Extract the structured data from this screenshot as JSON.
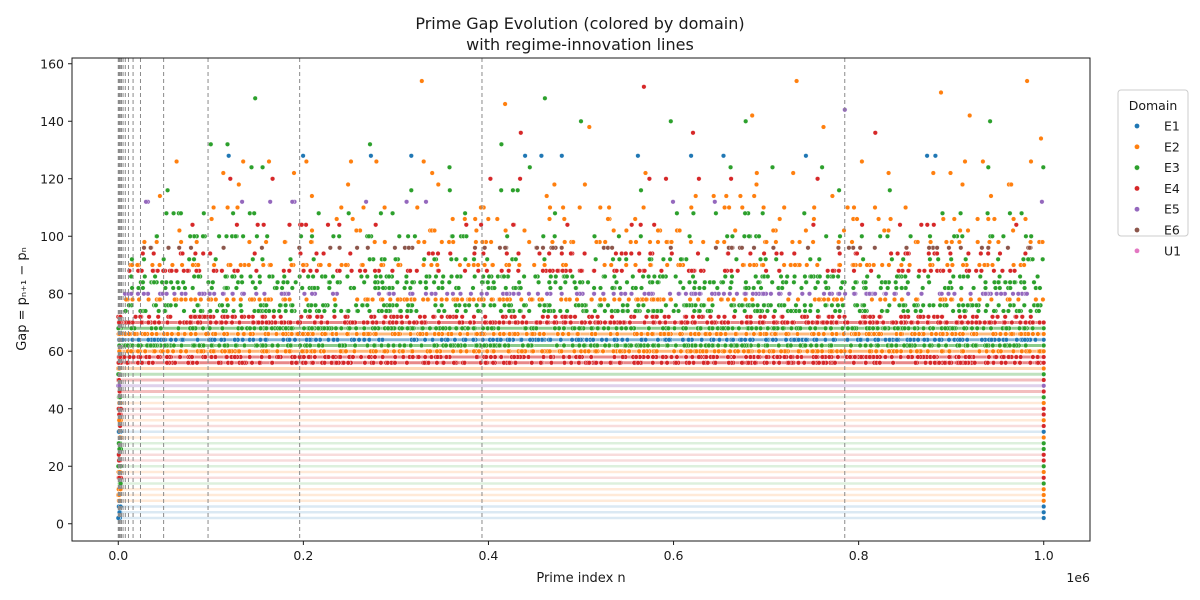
{
  "chart_data": {
    "type": "scatter",
    "title": "Prime Gap Evolution (colored by domain)",
    "subtitle": "with regime-innovation lines",
    "xlabel": "Prime index n",
    "ylabel": "Gap = pₙ₊₁ − pₙ",
    "x_offset_label": "1e6",
    "xlim": [
      -50000,
      1050000
    ],
    "ylim": [
      -6,
      162
    ],
    "x_ticks": [
      0,
      200000,
      400000,
      600000,
      800000,
      1000000
    ],
    "x_tick_labels": [
      "0.0",
      "0.2",
      "0.4",
      "0.6",
      "0.8",
      "1.0"
    ],
    "y_ticks": [
      0,
      20,
      40,
      60,
      80,
      100,
      120,
      140,
      160
    ],
    "y_tick_labels": [
      "0",
      "20",
      "40",
      "60",
      "80",
      "100",
      "120",
      "140",
      "160"
    ],
    "grid": false,
    "legend": {
      "title": "Domain",
      "placement": "outside-right-top",
      "entries": [
        "E1",
        "E2",
        "E3",
        "E4",
        "E5",
        "E6",
        "U1"
      ]
    },
    "domain_colors": {
      "E1": "#1f77b4",
      "E2": "#ff7f0e",
      "E3": "#2ca02c",
      "E4": "#d62728",
      "E5": "#9467bd",
      "E6": "#8c564b",
      "U1": "#e377c2"
    },
    "gap_domains": [
      {
        "gap": 2,
        "domain": "E1"
      },
      {
        "gap": 4,
        "domain": "E1"
      },
      {
        "gap": 6,
        "domain": "E1"
      },
      {
        "gap": 8,
        "domain": "E2"
      },
      {
        "gap": 10,
        "domain": "E2"
      },
      {
        "gap": 12,
        "domain": "E2"
      },
      {
        "gap": 14,
        "domain": "E3"
      },
      {
        "gap": 16,
        "domain": "E4"
      },
      {
        "gap": 18,
        "domain": "E2"
      },
      {
        "gap": 20,
        "domain": "E3"
      },
      {
        "gap": 22,
        "domain": "E4"
      },
      {
        "gap": 24,
        "domain": "E4"
      },
      {
        "gap": 26,
        "domain": "E3"
      },
      {
        "gap": 28,
        "domain": "E3"
      },
      {
        "gap": 30,
        "domain": "E2"
      },
      {
        "gap": 32,
        "domain": "E1"
      },
      {
        "gap": 34,
        "domain": "E4"
      },
      {
        "gap": 36,
        "domain": "E2"
      },
      {
        "gap": 38,
        "domain": "E4"
      },
      {
        "gap": 40,
        "domain": "E4"
      },
      {
        "gap": 42,
        "domain": "E2"
      },
      {
        "gap": 44,
        "domain": "E3"
      },
      {
        "gap": 46,
        "domain": "E4"
      },
      {
        "gap": 48,
        "domain": "E5"
      },
      {
        "gap": 50,
        "domain": "E4"
      },
      {
        "gap": 52,
        "domain": "E3"
      },
      {
        "gap": 54,
        "domain": "E2"
      },
      {
        "gap": 56,
        "domain": "E4"
      },
      {
        "gap": 58,
        "domain": "E4"
      },
      {
        "gap": 60,
        "domain": "E2"
      },
      {
        "gap": 62,
        "domain": "E3"
      },
      {
        "gap": 64,
        "domain": "E1"
      },
      {
        "gap": 66,
        "domain": "E2"
      },
      {
        "gap": 68,
        "domain": "E3"
      },
      {
        "gap": 70,
        "domain": "E4"
      },
      {
        "gap": 72,
        "domain": "E4"
      },
      {
        "gap": 74,
        "domain": "E3"
      },
      {
        "gap": 76,
        "domain": "E3"
      },
      {
        "gap": 78,
        "domain": "E2"
      },
      {
        "gap": 80,
        "domain": "E5"
      },
      {
        "gap": 82,
        "domain": "E3"
      },
      {
        "gap": 84,
        "domain": "E3"
      },
      {
        "gap": 86,
        "domain": "E3"
      },
      {
        "gap": 88,
        "domain": "E4"
      },
      {
        "gap": 90,
        "domain": "E2"
      },
      {
        "gap": 92,
        "domain": "E3"
      },
      {
        "gap": 94,
        "domain": "E4"
      },
      {
        "gap": 96,
        "domain": "E6"
      },
      {
        "gap": 98,
        "domain": "E2"
      },
      {
        "gap": 100,
        "domain": "E3"
      },
      {
        "gap": 102,
        "domain": "E2"
      },
      {
        "gap": 104,
        "domain": "E4"
      },
      {
        "gap": 106,
        "domain": "E2"
      },
      {
        "gap": 108,
        "domain": "E3"
      },
      {
        "gap": 110,
        "domain": "E2"
      },
      {
        "gap": 112,
        "domain": "E5"
      },
      {
        "gap": 114,
        "domain": "E2"
      },
      {
        "gap": 116,
        "domain": "E3"
      },
      {
        "gap": 118,
        "domain": "E2"
      },
      {
        "gap": 120,
        "domain": "E4"
      },
      {
        "gap": 122,
        "domain": "E2"
      },
      {
        "gap": 124,
        "domain": "E3"
      },
      {
        "gap": 126,
        "domain": "E2"
      },
      {
        "gap": 128,
        "domain": "E1"
      },
      {
        "gap": 130,
        "domain": "E2"
      },
      {
        "gap": 132,
        "domain": "E3"
      },
      {
        "gap": 134,
        "domain": "E2"
      },
      {
        "gap": 136,
        "domain": "E4"
      },
      {
        "gap": 138,
        "domain": "E2"
      },
      {
        "gap": 140,
        "domain": "E3"
      },
      {
        "gap": 142,
        "domain": "E2"
      },
      {
        "gap": 144,
        "domain": "E5"
      },
      {
        "gap": 146,
        "domain": "E2"
      },
      {
        "gap": 148,
        "domain": "E3"
      },
      {
        "gap": 150,
        "domain": "E2"
      },
      {
        "gap": 152,
        "domain": "E4"
      },
      {
        "gap": 154,
        "domain": "E2"
      }
    ],
    "regime_innovation_lines_x": [
      0,
      600,
      1300,
      2200,
      3500,
      5200,
      7600,
      11000,
      16000,
      24000,
      49000,
      97000,
      196000,
      393000,
      785000
    ],
    "highlighted_points": [
      {
        "x": 35000,
        "y": 96,
        "domain": "E6"
      },
      {
        "x": 45000,
        "y": 114,
        "domain": "E2"
      },
      {
        "x": 30000,
        "y": 112,
        "domain": "E5"
      },
      {
        "x": 100000,
        "y": 132,
        "domain": "E3"
      },
      {
        "x": 118000,
        "y": 132,
        "domain": "E3"
      },
      {
        "x": 135000,
        "y": 126,
        "domain": "E2"
      },
      {
        "x": 148000,
        "y": 148,
        "domain": "E3"
      },
      {
        "x": 188000,
        "y": 112,
        "domain": "E5"
      },
      {
        "x": 328000,
        "y": 154,
        "domain": "E2"
      },
      {
        "x": 272000,
        "y": 132,
        "domain": "E3"
      },
      {
        "x": 273000,
        "y": 128,
        "domain": "E1"
      },
      {
        "x": 330000,
        "y": 126,
        "domain": "E2"
      },
      {
        "x": 414000,
        "y": 132,
        "domain": "E3"
      },
      {
        "x": 418000,
        "y": 146,
        "domain": "E2"
      },
      {
        "x": 435000,
        "y": 136,
        "domain": "E4"
      },
      {
        "x": 461000,
        "y": 148,
        "domain": "E3"
      },
      {
        "x": 500000,
        "y": 140,
        "domain": "E3"
      },
      {
        "x": 509000,
        "y": 138,
        "domain": "E2"
      },
      {
        "x": 568000,
        "y": 152,
        "domain": "E4"
      },
      {
        "x": 597000,
        "y": 140,
        "domain": "E3"
      },
      {
        "x": 621000,
        "y": 136,
        "domain": "E4"
      },
      {
        "x": 654000,
        "y": 128,
        "domain": "E1"
      },
      {
        "x": 678000,
        "y": 140,
        "domain": "E3"
      },
      {
        "x": 685000,
        "y": 142,
        "domain": "E2"
      },
      {
        "x": 733000,
        "y": 154,
        "domain": "E2"
      },
      {
        "x": 743000,
        "y": 128,
        "domain": "E1"
      },
      {
        "x": 762000,
        "y": 138,
        "domain": "E2"
      },
      {
        "x": 785000,
        "y": 144,
        "domain": "E5"
      },
      {
        "x": 818000,
        "y": 136,
        "domain": "E4"
      },
      {
        "x": 874000,
        "y": 128,
        "domain": "E1"
      },
      {
        "x": 889000,
        "y": 150,
        "domain": "E2"
      },
      {
        "x": 920000,
        "y": 142,
        "domain": "E2"
      },
      {
        "x": 942000,
        "y": 140,
        "domain": "E3"
      },
      {
        "x": 982000,
        "y": 154,
        "domain": "E2"
      },
      {
        "x": 997000,
        "y": 134,
        "domain": "E2"
      },
      {
        "x": 998000,
        "y": 112,
        "domain": "E5"
      }
    ]
  }
}
